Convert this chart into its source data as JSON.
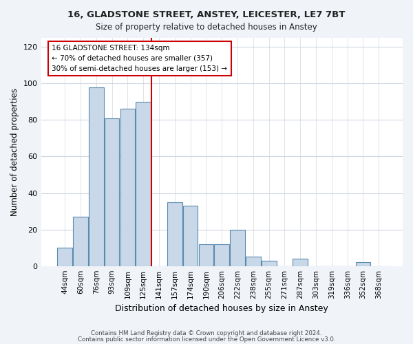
{
  "title1": "16, GLADSTONE STREET, ANSTEY, LEICESTER, LE7 7BT",
  "title2": "Size of property relative to detached houses in Anstey",
  "xlabel": "Distribution of detached houses by size in Anstey",
  "ylabel": "Number of detached properties",
  "categories": [
    "44sqm",
    "60sqm",
    "76sqm",
    "93sqm",
    "109sqm",
    "125sqm",
    "141sqm",
    "157sqm",
    "174sqm",
    "190sqm",
    "206sqm",
    "222sqm",
    "238sqm",
    "255sqm",
    "271sqm",
    "287sqm",
    "303sqm",
    "319sqm",
    "336sqm",
    "352sqm",
    "368sqm"
  ],
  "values": [
    10,
    27,
    98,
    81,
    86,
    90,
    0,
    35,
    33,
    12,
    12,
    20,
    5,
    3,
    0,
    4,
    0,
    0,
    0,
    2,
    0
  ],
  "bar_color": "#c8d8e8",
  "bar_edge_color": "#5a8ab0",
  "vline_x": 5.5,
  "vline_color": "#cc0000",
  "annotation_line1": "16 GLADSTONE STREET: 134sqm",
  "annotation_line2": "← 70% of detached houses are smaller (357)",
  "annotation_line3": "30% of semi-detached houses are larger (153) →",
  "annotation_box_color": "#ffffff",
  "annotation_box_edge_color": "#cc0000",
  "ylim": [
    0,
    125
  ],
  "yticks": [
    0,
    20,
    40,
    60,
    80,
    100,
    120
  ],
  "footer1": "Contains HM Land Registry data © Crown copyright and database right 2024.",
  "footer2": "Contains public sector information licensed under the Open Government Licence v3.0.",
  "bg_color": "#f0f4f8",
  "plot_bg_color": "#ffffff"
}
